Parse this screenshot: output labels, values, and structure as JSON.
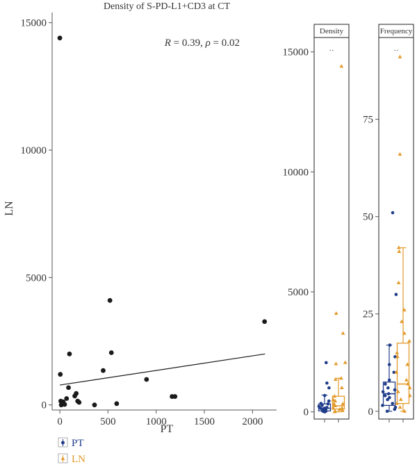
{
  "colors": {
    "pt": "#1f3c8a",
    "ln": "#e39a2a",
    "point": "#1a1a1a",
    "line": "#1a1a1a",
    "axis": "#555555"
  },
  "chart_data": [
    {
      "type": "scatter",
      "title": "Density of S-PD-L1+CD3 at CT",
      "xlabel": "PT",
      "ylabel": "LN",
      "xlim": [
        -80,
        2250
      ],
      "ylim": [
        -200,
        15400
      ],
      "xticks": [
        0,
        500,
        1000,
        1500,
        2000
      ],
      "yticks": [
        0,
        5000,
        10000,
        15000
      ],
      "xtick_labels": [
        "0",
        "500",
        "1000",
        "1500",
        "2000"
      ],
      "ytick_labels": [
        "0",
        "5000",
        "10000",
        "15000"
      ],
      "annotation": {
        "r_label": "R",
        "r_value": "0.39",
        "rho_label": "ρ",
        "rho_value": "0.02"
      },
      "points": [
        [
          0,
          14400
        ],
        [
          5,
          1200
        ],
        [
          10,
          150
        ],
        [
          15,
          0
        ],
        [
          25,
          30
        ],
        [
          35,
          120
        ],
        [
          50,
          20
        ],
        [
          70,
          250
        ],
        [
          90,
          680
        ],
        [
          100,
          2000
        ],
        [
          155,
          350
        ],
        [
          170,
          450
        ],
        [
          185,
          150
        ],
        [
          200,
          100
        ],
        [
          360,
          0
        ],
        [
          450,
          1350
        ],
        [
          520,
          4100
        ],
        [
          535,
          2050
        ],
        [
          590,
          50
        ],
        [
          900,
          1000
        ],
        [
          1165,
          330
        ],
        [
          1195,
          330
        ],
        [
          2125,
          3270
        ]
      ],
      "regression": {
        "x": [
          0,
          2130
        ],
        "y": [
          780,
          2000
        ]
      }
    },
    {
      "type": "box",
      "facet": "Density",
      "ylim": [
        -300,
        15600
      ],
      "yticks": [
        0,
        5000,
        10000,
        15000
      ],
      "ytick_labels": [
        "0",
        "5000",
        "10000",
        "15000"
      ],
      "significance": "··",
      "groups": [
        {
          "name": "PT",
          "q1": 40,
          "median": 150,
          "q3": 330,
          "low": 0,
          "high": 700,
          "points": [
            0,
            10,
            20,
            30,
            50,
            80,
            100,
            120,
            150,
            150,
            180,
            230,
            270,
            330,
            350,
            450,
            680,
            1000,
            1200,
            2050
          ]
        },
        {
          "name": "LN",
          "q1": 120,
          "median": 250,
          "q3": 650,
          "low": 0,
          "high": 1400,
          "points": [
            0,
            30,
            50,
            100,
            150,
            150,
            250,
            330,
            330,
            450,
            500,
            650,
            1000,
            1350,
            1400,
            2000,
            2050,
            3270,
            4100,
            14400
          ]
        }
      ]
    },
    {
      "type": "box",
      "facet": "Frequency",
      "ylim": [
        -2,
        96
      ],
      "yticks": [
        0,
        25,
        50,
        75
      ],
      "ytick_labels": [
        "0",
        "25",
        "50",
        "75"
      ],
      "significance": "··",
      "groups": [
        {
          "name": "PT",
          "q1": 1.5,
          "median": 4.5,
          "q3": 7.5,
          "low": 0,
          "high": 17,
          "points": [
            0,
            0.5,
            1,
            1.5,
            2,
            3,
            3.5,
            4,
            4.5,
            5,
            5.5,
            6,
            7,
            8,
            10,
            12,
            14,
            17,
            30,
            51
          ]
        },
        {
          "name": "LN",
          "q1": 2,
          "median": 7,
          "q3": 17.5,
          "low": 0,
          "high": 42,
          "points": [
            0,
            1,
            2,
            3,
            4,
            5,
            6,
            7,
            8,
            10,
            12,
            14,
            15,
            18,
            20,
            23,
            26,
            33,
            41,
            42,
            66,
            91
          ]
        }
      ]
    }
  ],
  "legend": [
    {
      "name": "PT",
      "color": "#1f3c8a",
      "shape": "circle"
    },
    {
      "name": "LN",
      "color": "#e39a2a",
      "shape": "triangle"
    }
  ]
}
